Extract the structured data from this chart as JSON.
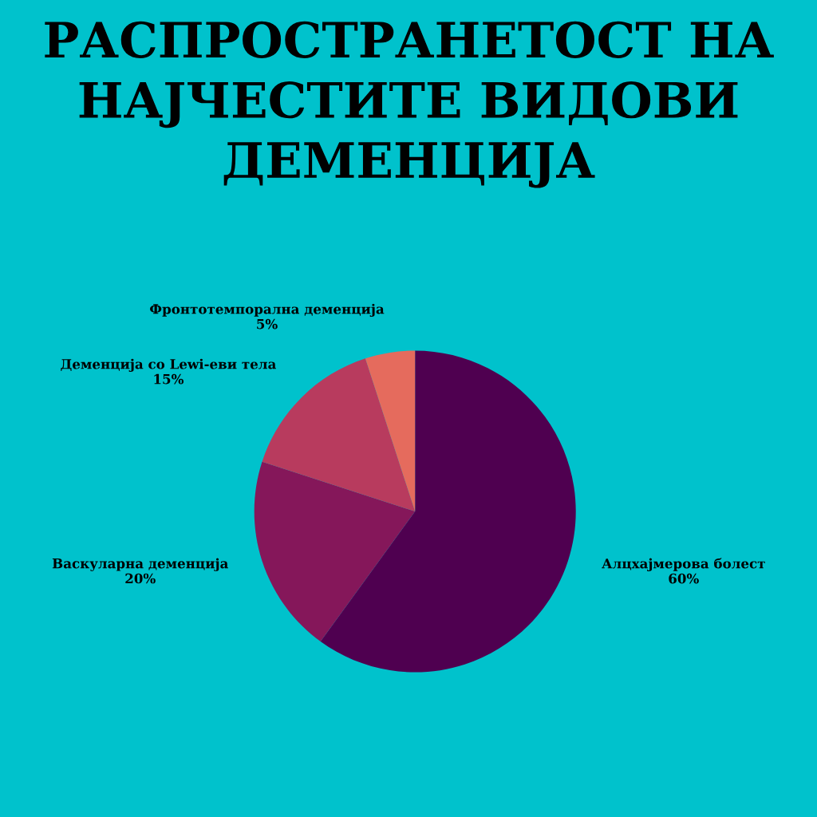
{
  "chart_data": {
    "type": "pie",
    "title": "РАСПРОСТРАНЕТОСТ НА НАЈЧЕСТИТЕ ВИДОВИ ДЕМЕНЦИЈА",
    "categories": [
      "Алцхајмерова болест",
      "Васкуларна деменција",
      "Деменција со Lewi-еви тела",
      "Фронтотемпорална деменција"
    ],
    "values": [
      60,
      20,
      15,
      5
    ],
    "value_labels": [
      "60%",
      "20%",
      "15%",
      "5%"
    ],
    "colors": [
      "#4f0050",
      "#85175a",
      "#b83b5e",
      "#e56b5d"
    ]
  }
}
